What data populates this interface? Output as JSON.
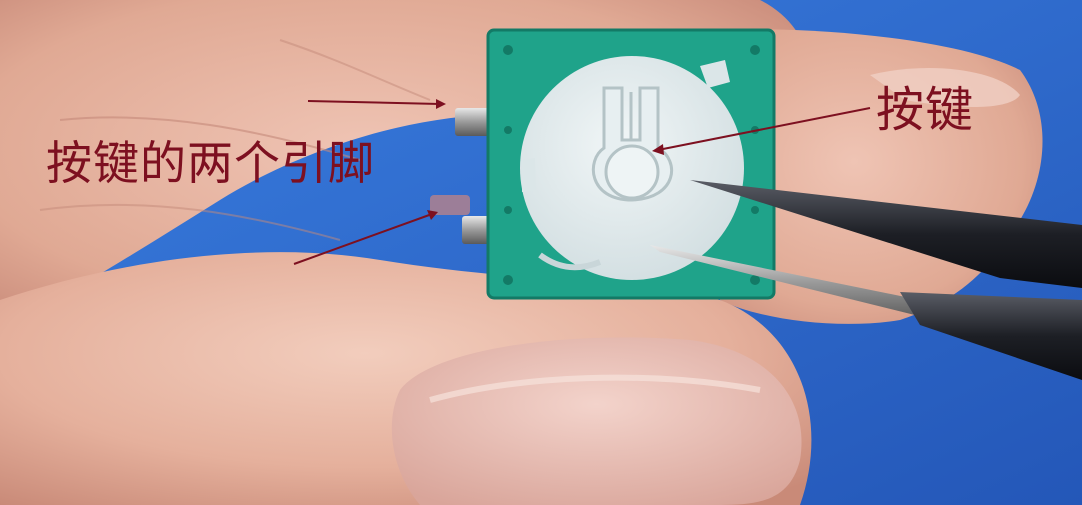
{
  "annotations": {
    "pins_label": "按键的两个引脚",
    "button_label": "按键"
  },
  "colors": {
    "annotation": "#7d1020",
    "pcb": "#1fa38a",
    "button_cap": "#dde8ea",
    "background": "#2f6fd6",
    "skin": "#e6b5a4"
  },
  "icons": {
    "photo": "photo-of-tactile-switch-held-in-fingers-with-tweezers"
  }
}
